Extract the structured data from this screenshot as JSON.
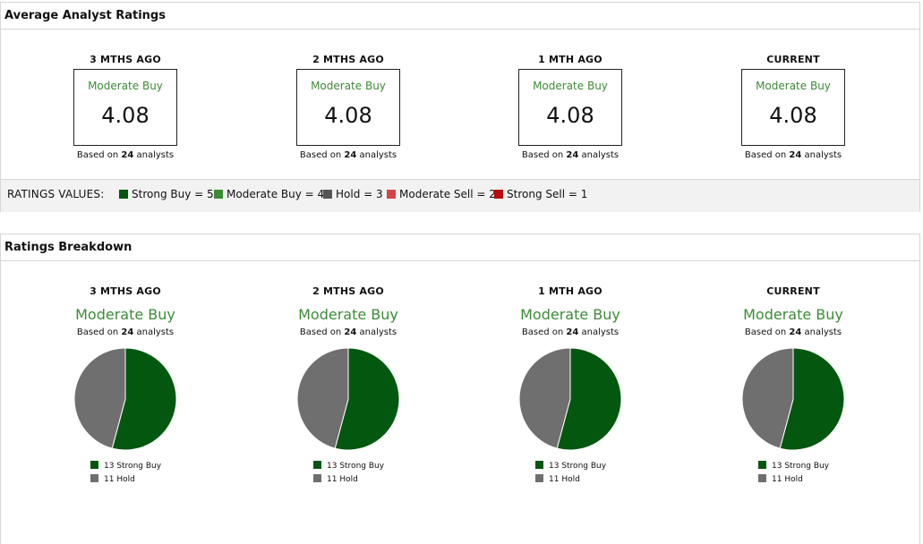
{
  "avg_panel": {
    "title": "Average Analyst Ratings",
    "columns": [
      {
        "period": "3 MTHS AGO",
        "label": "Moderate Buy",
        "value": "4.08",
        "based_prefix": "Based on ",
        "analysts": "24",
        "based_suffix": " analysts"
      },
      {
        "period": "2 MTHS AGO",
        "label": "Moderate Buy",
        "value": "4.08",
        "based_prefix": "Based on ",
        "analysts": "24",
        "based_suffix": " analysts"
      },
      {
        "period": "1 MTH AGO",
        "label": "Moderate Buy",
        "value": "4.08",
        "based_prefix": "Based on ",
        "analysts": "24",
        "based_suffix": " analysts"
      },
      {
        "period": "CURRENT",
        "label": "Moderate Buy",
        "value": "4.08",
        "based_prefix": "Based on ",
        "analysts": "24",
        "based_suffix": " analysts"
      }
    ],
    "legend": {
      "title": "RATINGS VALUES:",
      "items": [
        {
          "label": "Strong Buy = 5",
          "color": "#04570f"
        },
        {
          "label": "Moderate Buy = 4",
          "color": "#3d8b37"
        },
        {
          "label": "Hold = 3",
          "color": "#555555"
        },
        {
          "label": "Moderate Sell = 2",
          "color": "#d64545"
        },
        {
          "label": "Strong Sell = 1",
          "color": "#b80c0c"
        }
      ]
    }
  },
  "breakdown_panel": {
    "title": "Ratings Breakdown",
    "columns": [
      {
        "period": "3 MTHS AGO",
        "label": "Moderate Buy",
        "based_prefix": "Based on ",
        "analysts": "24",
        "based_suffix": " analysts",
        "legend": [
          {
            "text": "13 Strong Buy"
          },
          {
            "text": "11 Hold"
          }
        ]
      },
      {
        "period": "2 MTHS AGO",
        "label": "Moderate Buy",
        "based_prefix": "Based on ",
        "analysts": "24",
        "based_suffix": " analysts",
        "legend": [
          {
            "text": "13 Strong Buy"
          },
          {
            "text": "11 Hold"
          }
        ]
      },
      {
        "period": "1 MTH AGO",
        "label": "Moderate Buy",
        "based_prefix": "Based on ",
        "analysts": "24",
        "based_suffix": " analysts",
        "legend": [
          {
            "text": "13 Strong Buy"
          },
          {
            "text": "11 Hold"
          }
        ]
      },
      {
        "period": "CURRENT",
        "label": "Moderate Buy",
        "based_prefix": "Based on ",
        "analysts": "24",
        "based_suffix": " analysts",
        "legend": [
          {
            "text": "13 Strong Buy"
          },
          {
            "text": "11 Hold"
          }
        ]
      }
    ]
  },
  "chart_data": [
    {
      "type": "pie",
      "categories": [
        "Strong Buy",
        "Hold"
      ],
      "values": [
        13,
        11
      ],
      "colors": [
        "#04570f",
        "#6f6f6f"
      ]
    },
    {
      "type": "pie",
      "categories": [
        "Strong Buy",
        "Hold"
      ],
      "values": [
        13,
        11
      ],
      "colors": [
        "#04570f",
        "#6f6f6f"
      ]
    },
    {
      "type": "pie",
      "categories": [
        "Strong Buy",
        "Hold"
      ],
      "values": [
        13,
        11
      ],
      "colors": [
        "#04570f",
        "#6f6f6f"
      ]
    },
    {
      "type": "pie",
      "categories": [
        "Strong Buy",
        "Hold"
      ],
      "values": [
        13,
        11
      ],
      "colors": [
        "#04570f",
        "#6f6f6f"
      ]
    }
  ]
}
